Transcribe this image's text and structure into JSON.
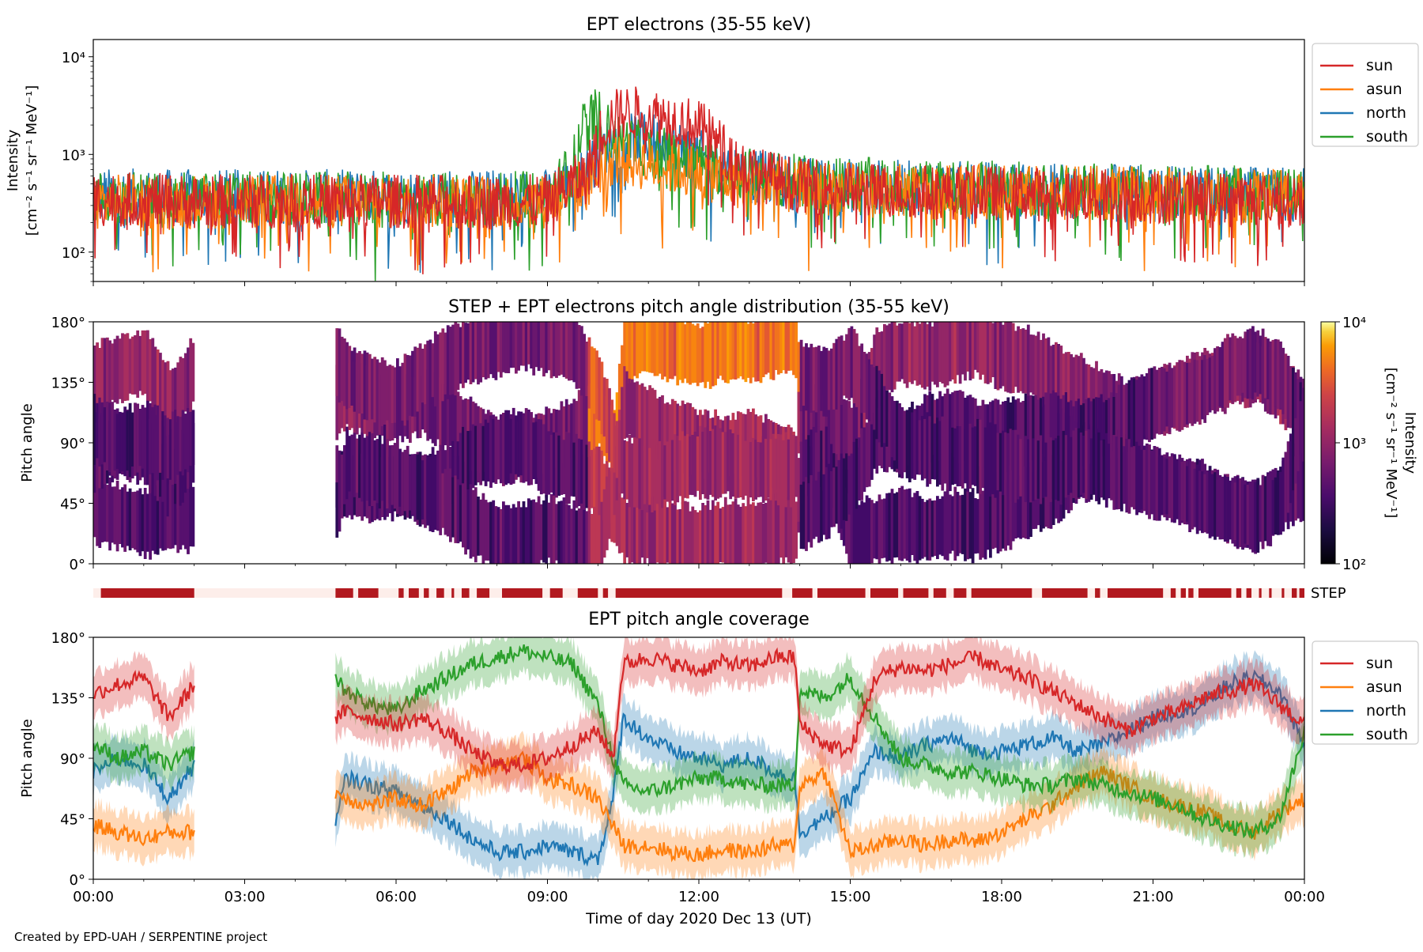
{
  "figure": {
    "credit": "Created by EPD-UAH / SERPENTINE project"
  },
  "colors": {
    "sun": "#d62728",
    "asun": "#ff7f0e",
    "north": "#1f77b4",
    "south": "#2ca02c",
    "step_bar": "#b2191f",
    "step_bar_bg": "#fdeeea"
  },
  "chart_data": [
    {
      "type": "line",
      "title": "EPT electrons (35-55 keV)",
      "ylabel_line1": "Intensity",
      "ylabel_line2": "[cm⁻² s⁻¹ sr⁻¹ MeV⁻¹]",
      "yscale": "log",
      "ylim": [
        50,
        15000
      ],
      "ytick_labels": [
        "10²",
        "10³",
        "10⁴"
      ],
      "ytick_values": [
        100,
        1000,
        10000
      ],
      "xlim": [
        "00:00",
        "24:00"
      ],
      "legend_position": "top-right",
      "series": [
        {
          "name": "sun",
          "x": [
            0,
            1,
            2,
            3,
            4,
            5,
            6,
            7,
            8,
            9,
            9.8,
            10,
            10.3,
            10.5,
            11,
            11.5,
            12,
            12.5,
            13,
            14,
            15,
            16,
            17,
            18,
            19,
            20,
            21,
            22,
            23,
            24
          ],
          "y": [
            350,
            340,
            330,
            330,
            330,
            330,
            330,
            330,
            320,
            330,
            600,
            1500,
            2400,
            2700,
            2600,
            2300,
            1900,
            1100,
            650,
            480,
            440,
            420,
            410,
            400,
            390,
            380,
            370,
            360,
            350,
            340
          ]
        },
        {
          "name": "asun",
          "x": [
            0,
            2,
            4,
            6,
            8,
            9,
            9.8,
            10,
            10.3,
            11,
            12,
            12.5,
            13,
            14,
            16,
            18,
            20,
            22,
            24
          ],
          "y": [
            330,
            330,
            330,
            330,
            330,
            330,
            500,
            700,
            900,
            800,
            650,
            560,
            500,
            450,
            420,
            410,
            400,
            380,
            360
          ]
        },
        {
          "name": "north",
          "x": [
            0,
            2,
            4,
            6,
            8,
            9,
            9.8,
            10,
            10.3,
            11,
            11.5,
            12,
            12.5,
            13,
            14,
            16,
            18,
            20,
            22,
            24
          ],
          "y": [
            380,
            370,
            370,
            370,
            370,
            370,
            650,
            1000,
            1350,
            1450,
            1250,
            950,
            750,
            600,
            500,
            460,
            440,
            420,
            400,
            390
          ]
        },
        {
          "name": "south",
          "x": [
            0,
            2,
            4,
            6,
            8,
            9,
            9.5,
            9.8,
            10,
            10.3,
            11,
            12,
            13,
            14,
            16,
            18,
            20,
            22,
            24
          ],
          "y": [
            360,
            350,
            350,
            350,
            350,
            360,
            700,
            2300,
            2500,
            1400,
            1100,
            800,
            620,
            520,
            470,
            450,
            430,
            410,
            400
          ]
        }
      ]
    },
    {
      "type": "heatmap",
      "title": "STEP + EPT electrons pitch angle distribution (35-55 keV)",
      "ylabel": "Pitch angle",
      "ylim": [
        0,
        180
      ],
      "ytick_labels": [
        "0°",
        "45°",
        "90°",
        "135°",
        "180°"
      ],
      "xlim": [
        "00:00",
        "24:00"
      ],
      "colorbar": {
        "label_line1": "Intensity",
        "label_line2": "[cm⁻² s⁻¹ sr⁻¹ MeV⁻¹]",
        "scale": "log",
        "range": [
          100,
          10000
        ],
        "tick_labels": [
          "10²",
          "10³",
          "10⁴"
        ]
      },
      "data_gap_hours": [
        [
          2.0,
          4.8
        ]
      ]
    },
    {
      "type": "bar",
      "label": "STEP",
      "segments_hours": [
        [
          0.15,
          2.0
        ],
        [
          4.8,
          5.15
        ],
        [
          5.25,
          5.65
        ],
        [
          6.05,
          6.15
        ],
        [
          6.25,
          6.45
        ],
        [
          6.55,
          6.65
        ],
        [
          6.8,
          6.95
        ],
        [
          7.1,
          7.15
        ],
        [
          7.3,
          7.45
        ],
        [
          7.6,
          7.85
        ],
        [
          8.1,
          8.9
        ],
        [
          9.05,
          9.3
        ],
        [
          9.6,
          10.0
        ],
        [
          10.1,
          10.2
        ],
        [
          10.35,
          13.65
        ],
        [
          13.85,
          14.25
        ],
        [
          14.35,
          15.3
        ],
        [
          15.4,
          15.95
        ],
        [
          16.05,
          16.55
        ],
        [
          16.65,
          16.9
        ],
        [
          17.05,
          17.3
        ],
        [
          17.4,
          18.6
        ],
        [
          18.8,
          19.7
        ],
        [
          19.85,
          19.95
        ],
        [
          20.1,
          21.2
        ],
        [
          21.35,
          21.45
        ],
        [
          21.55,
          21.65
        ],
        [
          21.7,
          21.8
        ],
        [
          21.9,
          22.55
        ],
        [
          22.65,
          22.75
        ],
        [
          22.85,
          22.95
        ],
        [
          23.1,
          23.15
        ],
        [
          23.3,
          23.35
        ],
        [
          23.55,
          23.6
        ],
        [
          23.75,
          23.85
        ],
        [
          23.9,
          24.0
        ]
      ]
    },
    {
      "type": "line",
      "title": "EPT pitch angle coverage",
      "ylabel": "Pitch angle",
      "xlabel": "Time of day 2020 Dec 13 (UT)",
      "ylim": [
        0,
        180
      ],
      "ytick_labels": [
        "0°",
        "45°",
        "90°",
        "135°",
        "180°"
      ],
      "xtick_labels": [
        "00:00",
        "03:00",
        "06:00",
        "09:00",
        "12:00",
        "15:00",
        "18:00",
        "21:00",
        "00:00"
      ],
      "xlim": [
        "00:00",
        "24:00"
      ],
      "legend_position": "top-right",
      "data_gap_hours": [
        [
          2.0,
          4.8
        ]
      ],
      "series": [
        {
          "name": "sun",
          "x": [
            0,
            0.5,
            1,
            1.5,
            2,
            4.8,
            5,
            5.5,
            6,
            6.5,
            7,
            7.5,
            8,
            8.5,
            9,
            9.5,
            10,
            10.3,
            10.5,
            11,
            11.5,
            12,
            12.5,
            13,
            13.5,
            13.9,
            14,
            14.5,
            15,
            15.5,
            16,
            16.5,
            17,
            17.5,
            18,
            18.5,
            19,
            19.5,
            20,
            20.5,
            21,
            21.5,
            22,
            22.5,
            23,
            23.5,
            24
          ],
          "y": [
            138,
            145,
            150,
            120,
            145,
            120,
            125,
            120,
            115,
            120,
            110,
            95,
            85,
            85,
            90,
            100,
            110,
            90,
            160,
            165,
            160,
            155,
            162,
            158,
            165,
            165,
            115,
            100,
            95,
            150,
            158,
            155,
            160,
            165,
            155,
            150,
            140,
            130,
            120,
            110,
            120,
            125,
            135,
            140,
            145,
            130,
            115
          ]
        },
        {
          "name": "asun",
          "x": [
            0,
            0.5,
            1,
            1.5,
            2,
            4.8,
            5,
            5.5,
            6,
            6.5,
            7,
            7.5,
            8,
            8.5,
            9,
            9.5,
            10,
            10.3,
            10.5,
            11,
            11.5,
            12,
            12.5,
            13,
            13.5,
            13.9,
            14,
            14.5,
            15,
            15.5,
            16,
            16.5,
            17,
            17.5,
            18,
            18.5,
            19,
            19.5,
            20,
            20.5,
            21,
            21.5,
            22,
            22.5,
            23,
            23.5,
            24
          ],
          "y": [
            40,
            35,
            30,
            35,
            35,
            65,
            60,
            55,
            60,
            55,
            65,
            80,
            85,
            90,
            75,
            70,
            60,
            40,
            25,
            25,
            20,
            18,
            22,
            20,
            25,
            25,
            70,
            80,
            20,
            25,
            30,
            25,
            30,
            28,
            35,
            45,
            55,
            70,
            80,
            70,
            60,
            55,
            50,
            40,
            35,
            50,
            60
          ]
        },
        {
          "name": "north",
          "x": [
            0,
            0.5,
            1,
            1.5,
            2,
            4.8,
            5,
            5.5,
            6,
            6.5,
            7,
            7.5,
            8,
            8.5,
            9,
            9.5,
            10,
            10.3,
            10.5,
            11,
            11.5,
            12,
            12.5,
            13,
            13.5,
            13.9,
            14,
            14.5,
            15,
            15.5,
            16,
            16.5,
            17,
            17.5,
            18,
            18.5,
            19,
            19.5,
            20,
            20.5,
            21,
            21.5,
            22,
            22.5,
            23,
            23.5,
            24
          ],
          "y": [
            80,
            90,
            85,
            60,
            85,
            40,
            75,
            70,
            65,
            55,
            45,
            30,
            20,
            20,
            25,
            20,
            15,
            60,
            120,
            105,
            95,
            90,
            85,
            90,
            80,
            75,
            35,
            45,
            60,
            95,
            90,
            100,
            105,
            95,
            95,
            100,
            105,
            95,
            100,
            110,
            120,
            125,
            130,
            145,
            150,
            140,
            100
          ]
        },
        {
          "name": "south",
          "x": [
            0,
            0.5,
            1,
            1.5,
            2,
            4.8,
            5,
            5.5,
            6,
            6.5,
            7,
            7.5,
            8,
            8.5,
            9,
            9.5,
            10,
            10.3,
            10.5,
            11,
            11.5,
            12,
            12.5,
            13,
            13.5,
            13.9,
            14,
            14.5,
            15,
            15.5,
            16,
            16.5,
            17,
            17.5,
            18,
            18.5,
            19,
            19.5,
            20,
            20.5,
            21,
            21.5,
            22,
            22.5,
            23,
            23.5,
            24
          ],
          "y": [
            100,
            90,
            95,
            85,
            95,
            150,
            140,
            130,
            125,
            140,
            150,
            160,
            165,
            170,
            165,
            160,
            130,
            90,
            70,
            65,
            70,
            75,
            75,
            70,
            70,
            70,
            140,
            135,
            150,
            120,
            90,
            85,
            80,
            80,
            75,
            70,
            70,
            75,
            70,
            65,
            60,
            55,
            45,
            40,
            35,
            45,
            110
          ]
        }
      ]
    }
  ]
}
